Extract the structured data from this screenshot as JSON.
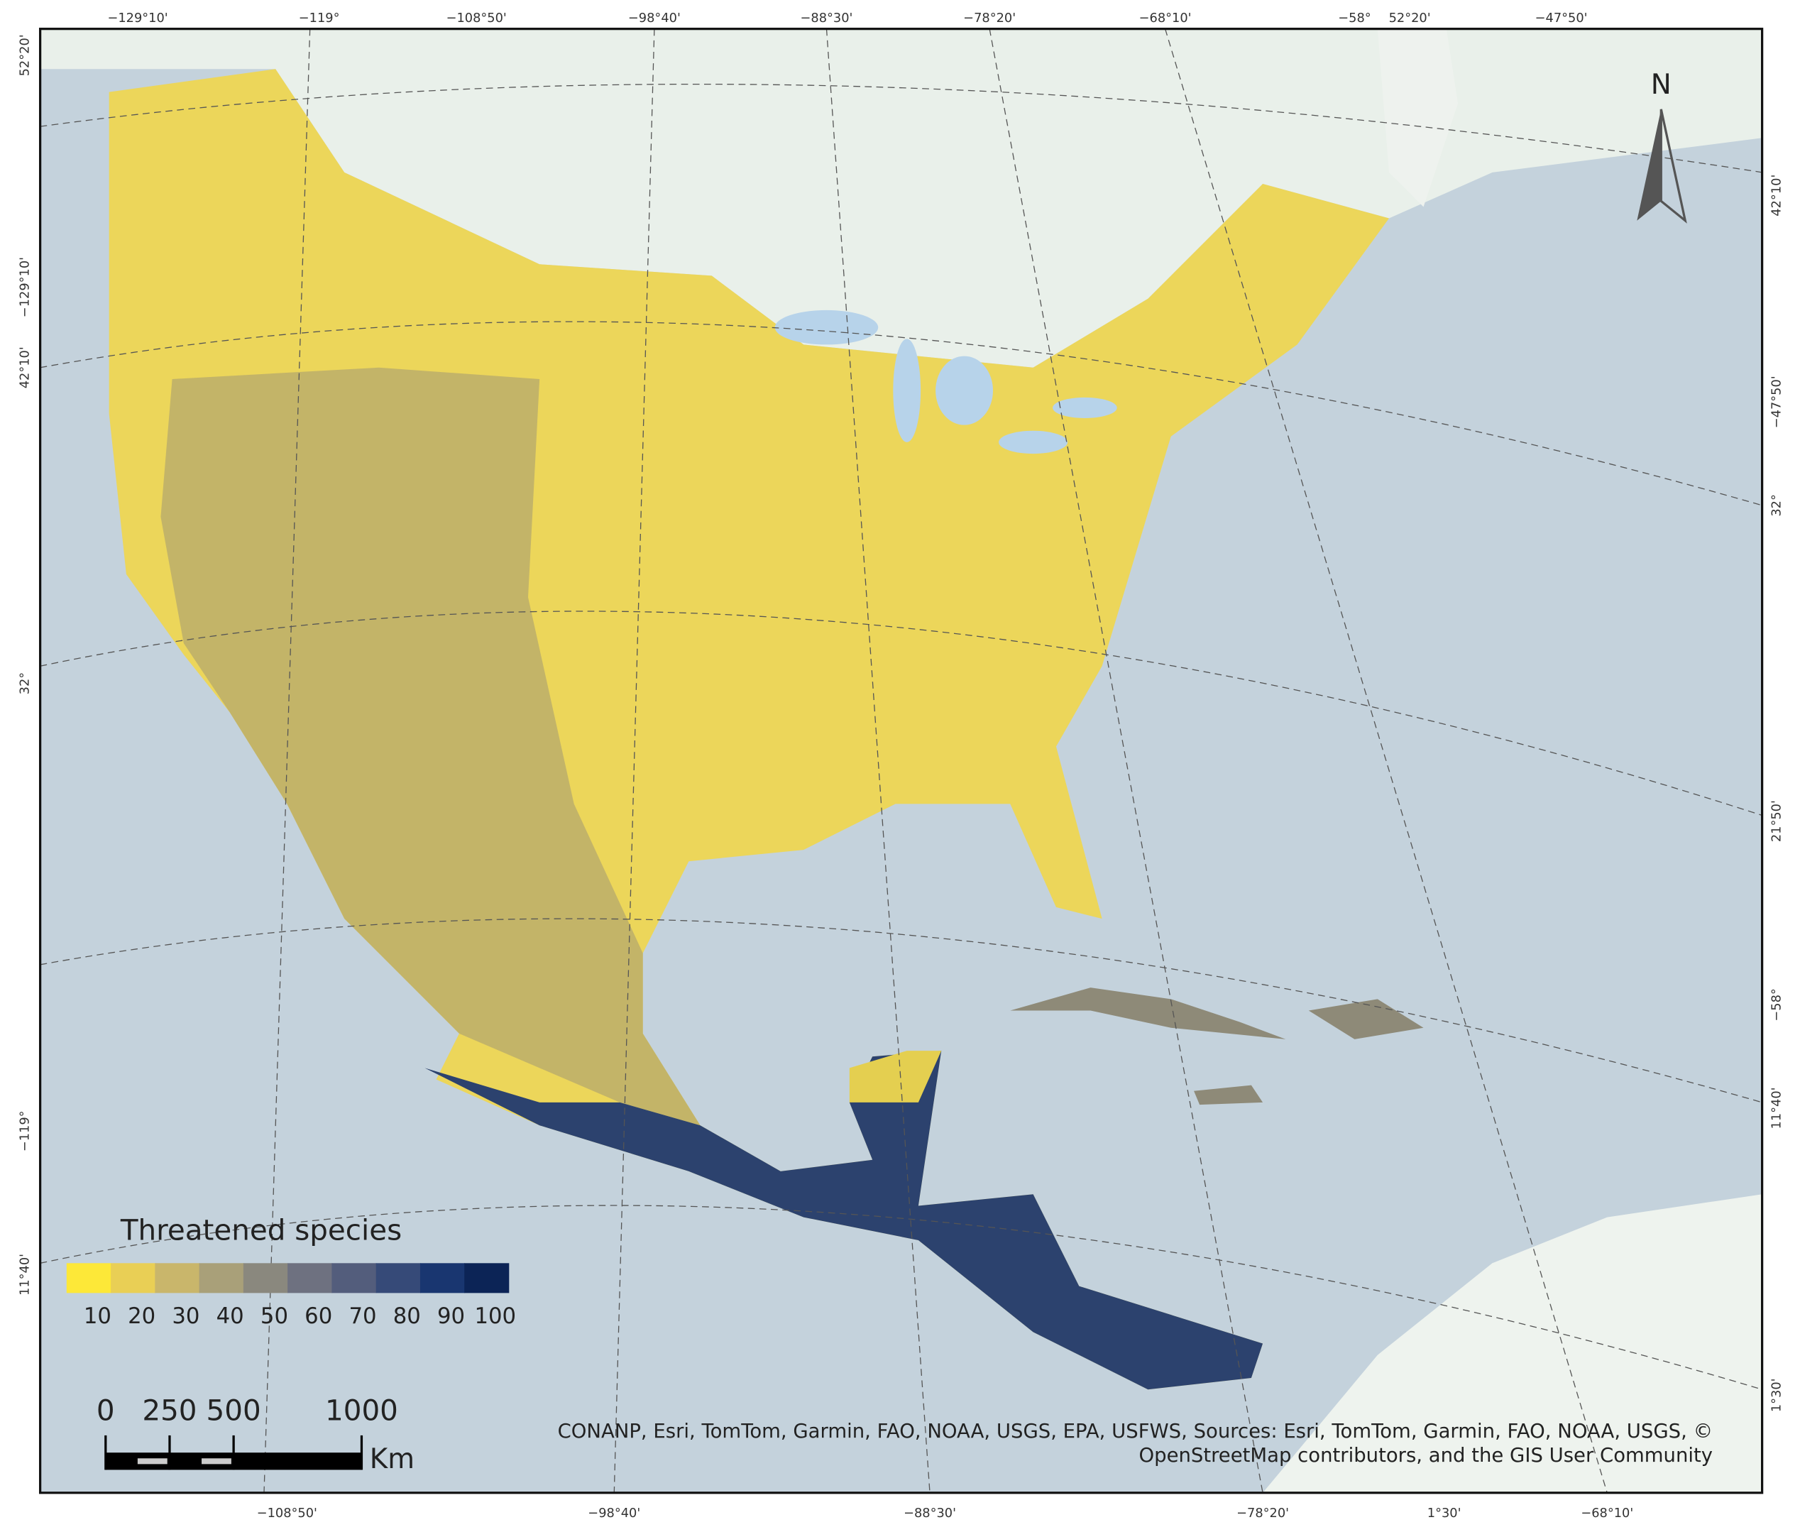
{
  "map": {
    "graticule_labels": {
      "top": [
        "−129°10'",
        "−119°",
        "−108°50'",
        "−98°40'",
        "−88°30'",
        "−78°20'",
        "−68°10'",
        "−58°",
        "52°20'",
        "−47°50'"
      ],
      "bottom": [
        "−108°50'",
        "−98°40'",
        "−88°30'",
        "−78°20'",
        "1°30'",
        "−68°10'"
      ],
      "left": [
        "52°20'",
        "−129°10'",
        "42°10'",
        "32°",
        "−119°",
        "11°40'"
      ],
      "right": [
        "42°10'",
        "−47°50'",
        "32°",
        "21°50'",
        "−58°",
        "11°40'",
        "1°30'"
      ]
    },
    "north": "N",
    "legend": {
      "title": "Threatened species",
      "classes": [
        {
          "label": "10",
          "color": "#fde838"
        },
        {
          "label": "20",
          "color": "#e9cf55"
        },
        {
          "label": "30",
          "color": "#c9b66b"
        },
        {
          "label": "40",
          "color": "#a9a079"
        },
        {
          "label": "50",
          "color": "#8a887e"
        },
        {
          "label": "60",
          "color": "#6e7180"
        },
        {
          "label": "70",
          "color": "#535d7c"
        },
        {
          "label": "80",
          "color": "#364a78"
        },
        {
          "label": "90",
          "color": "#193670"
        },
        {
          "label": "100",
          "color": "#0c2456"
        }
      ]
    },
    "scale_bar": {
      "ticks": [
        0,
        250,
        500,
        1000
      ],
      "unit": "Km"
    },
    "attribution": [
      "CONANP, Esri, TomTom, Garmin, FAO, NOAA, USGS, EPA, USFWS, Sources: Esri, TomTom, Garmin, FAO, NOAA, USGS, ©",
      "OpenStreetMap contributors, and the GIS User Community"
    ]
  }
}
